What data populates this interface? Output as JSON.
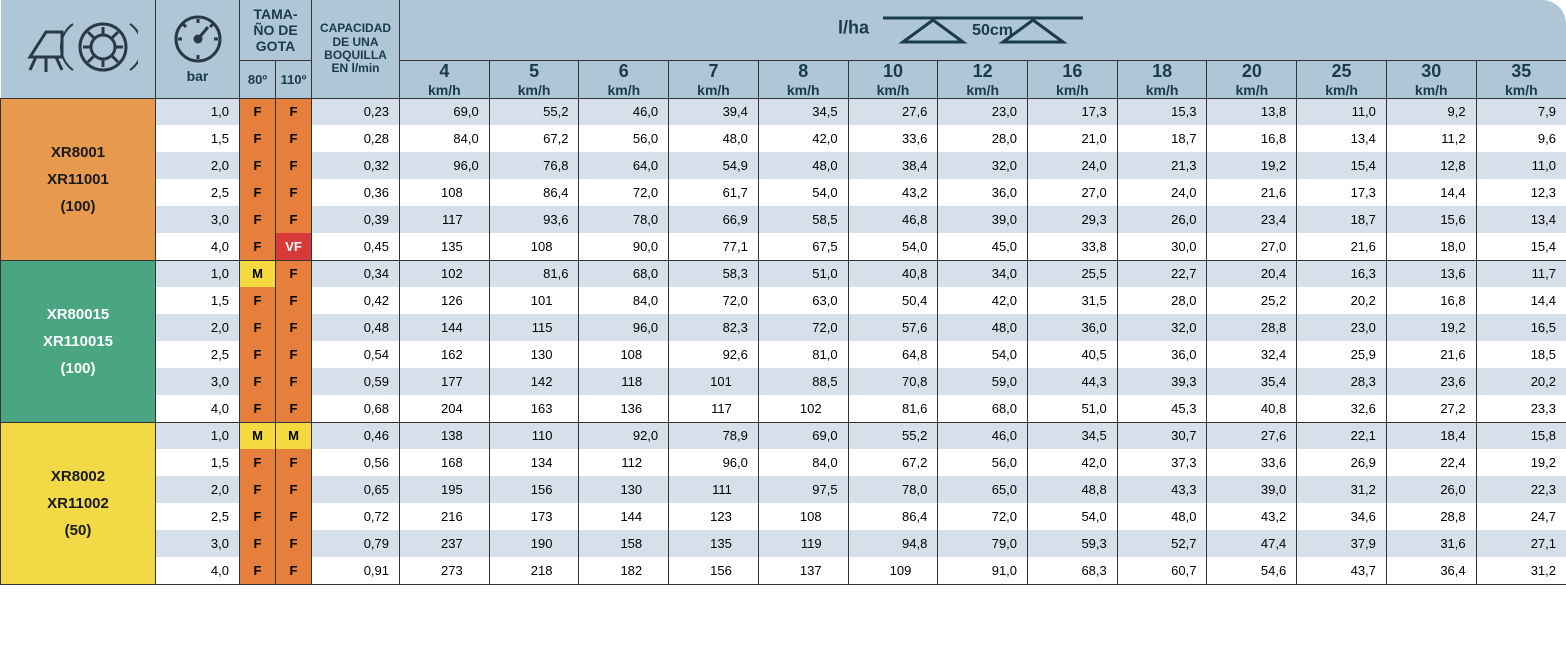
{
  "header": {
    "bar_label": "bar",
    "gota_label": "TAMA-\nÑO DE\nGOTA",
    "gota_80": "80º",
    "gota_110": "110º",
    "capac_label": "CAPACIDAD\nDE UNA\nBOQUILLA\nEN l/min",
    "lha_label": "l/ha",
    "spacing_label": "50cm",
    "speeds": [
      "4",
      "5",
      "6",
      "7",
      "8",
      "10",
      "12",
      "16",
      "18",
      "20",
      "25",
      "30",
      "35"
    ],
    "speed_unit": "km/h"
  },
  "colors": {
    "header_bg": "#aec6d6",
    "stripe_a": "#d5e0ea",
    "stripe_b": "#ffffff",
    "drop_F": "#e77f3c",
    "drop_M": "#f5d93f",
    "drop_VF": "#d83a3a",
    "nozzle_block": [
      "#e79a4d",
      "#4aa582",
      "#f2d946"
    ]
  },
  "blocks": [
    {
      "label_lines": [
        "XR8001",
        "XR11001",
        "(100)"
      ],
      "rows": [
        {
          "bar": "1,0",
          "d80": "F",
          "d110": "F",
          "cap": "0,23",
          "vals": [
            "69,0",
            "55,2",
            "46,0",
            "39,4",
            "34,5",
            "27,6",
            "23,0",
            "17,3",
            "15,3",
            "13,8",
            "11,0",
            "9,2",
            "7,9"
          ]
        },
        {
          "bar": "1,5",
          "d80": "F",
          "d110": "F",
          "cap": "0,28",
          "vals": [
            "84,0",
            "67,2",
            "56,0",
            "48,0",
            "42,0",
            "33,6",
            "28,0",
            "21,0",
            "18,7",
            "16,8",
            "13,4",
            "11,2",
            "9,6"
          ]
        },
        {
          "bar": "2,0",
          "d80": "F",
          "d110": "F",
          "cap": "0,32",
          "vals": [
            "96,0",
            "76,8",
            "64,0",
            "54,9",
            "48,0",
            "38,4",
            "32,0",
            "24,0",
            "21,3",
            "19,2",
            "15,4",
            "12,8",
            "11,0"
          ]
        },
        {
          "bar": "2,5",
          "d80": "F",
          "d110": "F",
          "cap": "0,36",
          "vals": [
            "108",
            "86,4",
            "72,0",
            "61,7",
            "54,0",
            "43,2",
            "36,0",
            "27,0",
            "24,0",
            "21,6",
            "17,3",
            "14,4",
            "12,3"
          ]
        },
        {
          "bar": "3,0",
          "d80": "F",
          "d110": "F",
          "cap": "0,39",
          "vals": [
            "117",
            "93,6",
            "78,0",
            "66,9",
            "58,5",
            "46,8",
            "39,0",
            "29,3",
            "26,0",
            "23,4",
            "18,7",
            "15,6",
            "13,4"
          ]
        },
        {
          "bar": "4,0",
          "d80": "F",
          "d110": "VF",
          "cap": "0,45",
          "vals": [
            "135",
            "108",
            "90,0",
            "77,1",
            "67,5",
            "54,0",
            "45,0",
            "33,8",
            "30,0",
            "27,0",
            "21,6",
            "18,0",
            "15,4"
          ]
        }
      ]
    },
    {
      "label_lines": [
        "XR80015",
        "XR110015",
        "(100)"
      ],
      "rows": [
        {
          "bar": "1,0",
          "d80": "M",
          "d110": "F",
          "cap": "0,34",
          "vals": [
            "102",
            "81,6",
            "68,0",
            "58,3",
            "51,0",
            "40,8",
            "34,0",
            "25,5",
            "22,7",
            "20,4",
            "16,3",
            "13,6",
            "11,7"
          ]
        },
        {
          "bar": "1,5",
          "d80": "F",
          "d110": "F",
          "cap": "0,42",
          "vals": [
            "126",
            "101",
            "84,0",
            "72,0",
            "63,0",
            "50,4",
            "42,0",
            "31,5",
            "28,0",
            "25,2",
            "20,2",
            "16,8",
            "14,4"
          ]
        },
        {
          "bar": "2,0",
          "d80": "F",
          "d110": "F",
          "cap": "0,48",
          "vals": [
            "144",
            "115",
            "96,0",
            "82,3",
            "72,0",
            "57,6",
            "48,0",
            "36,0",
            "32,0",
            "28,8",
            "23,0",
            "19,2",
            "16,5"
          ]
        },
        {
          "bar": "2,5",
          "d80": "F",
          "d110": "F",
          "cap": "0,54",
          "vals": [
            "162",
            "130",
            "108",
            "92,6",
            "81,0",
            "64,8",
            "54,0",
            "40,5",
            "36,0",
            "32,4",
            "25,9",
            "21,6",
            "18,5"
          ]
        },
        {
          "bar": "3,0",
          "d80": "F",
          "d110": "F",
          "cap": "0,59",
          "vals": [
            "177",
            "142",
            "118",
            "101",
            "88,5",
            "70,8",
            "59,0",
            "44,3",
            "39,3",
            "35,4",
            "28,3",
            "23,6",
            "20,2"
          ]
        },
        {
          "bar": "4,0",
          "d80": "F",
          "d110": "F",
          "cap": "0,68",
          "vals": [
            "204",
            "163",
            "136",
            "117",
            "102",
            "81,6",
            "68,0",
            "51,0",
            "45,3",
            "40,8",
            "32,6",
            "27,2",
            "23,3"
          ]
        }
      ]
    },
    {
      "label_lines": [
        "XR8002",
        "XR11002",
        "(50)"
      ],
      "rows": [
        {
          "bar": "1,0",
          "d80": "M",
          "d110": "M",
          "cap": "0,46",
          "vals": [
            "138",
            "110",
            "92,0",
            "78,9",
            "69,0",
            "55,2",
            "46,0",
            "34,5",
            "30,7",
            "27,6",
            "22,1",
            "18,4",
            "15,8"
          ]
        },
        {
          "bar": "1,5",
          "d80": "F",
          "d110": "F",
          "cap": "0,56",
          "vals": [
            "168",
            "134",
            "112",
            "96,0",
            "84,0",
            "67,2",
            "56,0",
            "42,0",
            "37,3",
            "33,6",
            "26,9",
            "22,4",
            "19,2"
          ]
        },
        {
          "bar": "2,0",
          "d80": "F",
          "d110": "F",
          "cap": "0,65",
          "vals": [
            "195",
            "156",
            "130",
            "111",
            "97,5",
            "78,0",
            "65,0",
            "48,8",
            "43,3",
            "39,0",
            "31,2",
            "26,0",
            "22,3"
          ]
        },
        {
          "bar": "2,5",
          "d80": "F",
          "d110": "F",
          "cap": "0,72",
          "vals": [
            "216",
            "173",
            "144",
            "123",
            "108",
            "86,4",
            "72,0",
            "54,0",
            "48,0",
            "43,2",
            "34,6",
            "28,8",
            "24,7"
          ]
        },
        {
          "bar": "3,0",
          "d80": "F",
          "d110": "F",
          "cap": "0,79",
          "vals": [
            "237",
            "190",
            "158",
            "135",
            "119",
            "94,8",
            "79,0",
            "59,3",
            "52,7",
            "47,4",
            "37,9",
            "31,6",
            "27,1"
          ]
        },
        {
          "bar": "4,0",
          "d80": "F",
          "d110": "F",
          "cap": "0,91",
          "vals": [
            "273",
            "218",
            "182",
            "156",
            "137",
            "109",
            "91,0",
            "68,3",
            "60,7",
            "54,6",
            "43,7",
            "36,4",
            "31,2"
          ]
        }
      ]
    }
  ]
}
